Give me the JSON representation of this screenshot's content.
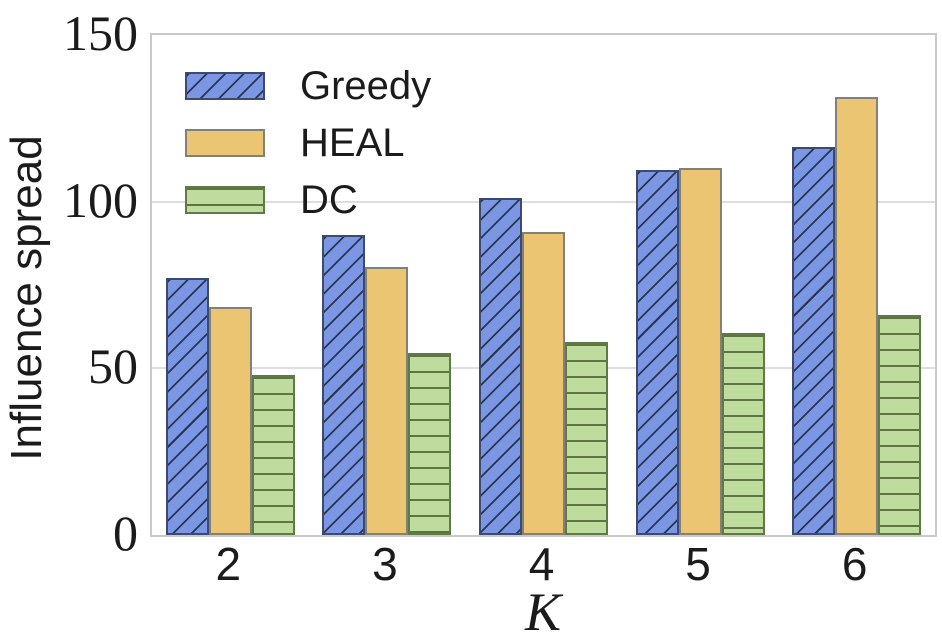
{
  "chart_data": {
    "type": "bar",
    "title": "",
    "xlabel": "K",
    "ylabel": "Influence spread",
    "categories": [
      "2",
      "3",
      "4",
      "5",
      "6"
    ],
    "series": [
      {
        "name": "Greedy",
        "values": [
          77,
          90,
          101,
          109.5,
          116.5
        ],
        "fill": "#7b97e3",
        "edge": "#3c4b6d",
        "hatch": "diagonal"
      },
      {
        "name": "HEAL",
        "values": [
          68.5,
          80.5,
          91,
          110,
          131.5
        ],
        "fill": "#ecc573",
        "edge": "#82807a",
        "hatch": "none"
      },
      {
        "name": "DC",
        "values": [
          48,
          54.5,
          58,
          60.5,
          66
        ],
        "fill": "#bedc9e",
        "edge": "#5f7a47",
        "hatch": "horizontal"
      }
    ],
    "ylim": [
      0,
      150
    ],
    "yticks": [
      0,
      50,
      100,
      150
    ],
    "grid": true,
    "legend_position": "upper-left",
    "colors": {
      "grid": "#dedede",
      "spine": "#c9c9c9",
      "text": "#1b1b1b",
      "background": "#ffffff"
    }
  }
}
